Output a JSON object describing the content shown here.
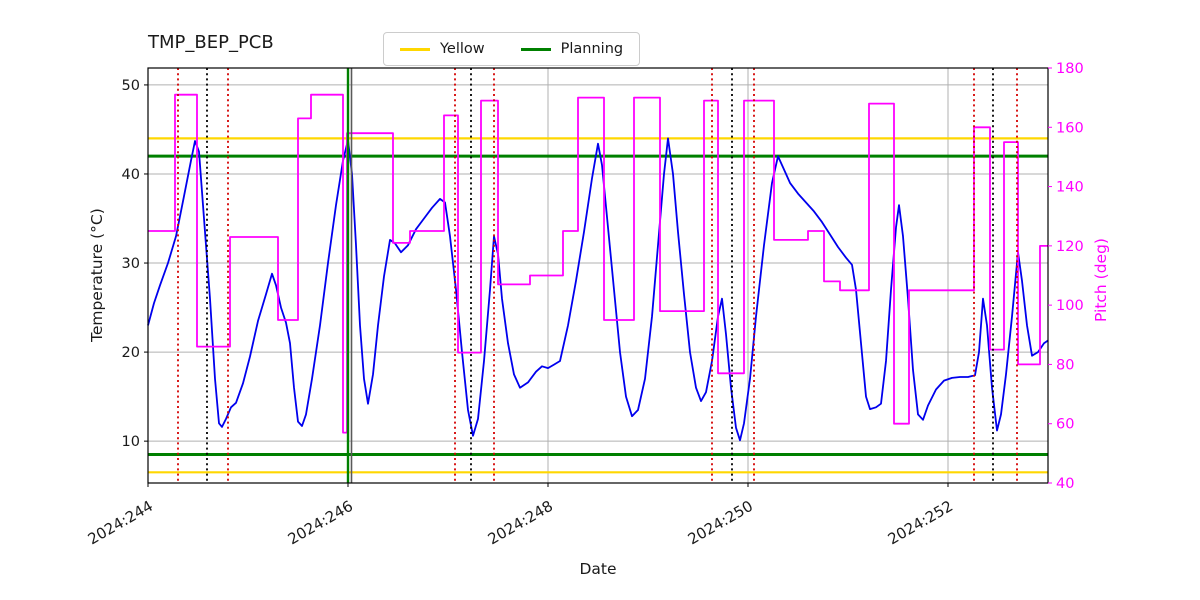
{
  "legend": {
    "items": [
      {
        "label": "Yellow",
        "color": "#ffd700"
      },
      {
        "label": "Planning",
        "color": "#008000"
      }
    ]
  },
  "chart_data": {
    "type": "line",
    "title": "TMP_BEP_PCB",
    "xlabel": "Date",
    "ylabel_left": "Temperature (°C)",
    "ylabel_right": "Pitch (deg)",
    "grid": true,
    "legend_position": "top-center",
    "x_range": [
      244,
      253
    ],
    "x_ticks": [
      {
        "value": 244,
        "label": "2024:244"
      },
      {
        "value": 246,
        "label": "2024:246"
      },
      {
        "value": 248,
        "label": "2024:248"
      },
      {
        "value": 250,
        "label": "2024:250"
      },
      {
        "value": 252,
        "label": "2024:252"
      }
    ],
    "temp_axis": {
      "ticks": [
        10,
        20,
        30,
        40,
        50
      ],
      "range": [
        5.3,
        51.9
      ]
    },
    "pitch_axis": {
      "ticks": [
        40,
        60,
        80,
        100,
        120,
        140,
        160,
        180
      ],
      "range": [
        40,
        180
      ],
      "color": "#ff00ff"
    },
    "colors": {
      "grid": "#b0b0b0",
      "spine": "#000000",
      "background": "#ffffff"
    },
    "series": [
      {
        "name": "Temperature",
        "axis": "left",
        "style": "line",
        "color": "#0000ee",
        "x": [
          244.0,
          244.06,
          244.12,
          244.2,
          244.28,
          244.36,
          244.43,
          244.47,
          244.51,
          244.56,
          244.62,
          244.67,
          244.71,
          244.74,
          244.78,
          244.83,
          244.88,
          244.95,
          245.02,
          245.1,
          245.18,
          245.24,
          245.28,
          245.33,
          245.38,
          245.42,
          245.46,
          245.5,
          245.54,
          245.58,
          245.64,
          245.72,
          245.8,
          245.88,
          245.95,
          246.0,
          246.04,
          246.08,
          246.12,
          246.16,
          246.2,
          246.25,
          246.3,
          246.36,
          246.42,
          246.47,
          246.53,
          246.6,
          246.68,
          246.76,
          246.84,
          246.92,
          246.97,
          247.02,
          247.08,
          247.14,
          247.2,
          247.25,
          247.3,
          247.36,
          247.42,
          247.46,
          247.5,
          247.54,
          247.6,
          247.66,
          247.72,
          247.8,
          247.88,
          247.94,
          248.0,
          248.06,
          248.12,
          248.2,
          248.28,
          248.36,
          248.44,
          248.5,
          248.54,
          248.6,
          248.66,
          248.72,
          248.78,
          248.84,
          248.9,
          248.97,
          249.04,
          249.1,
          249.16,
          249.2,
          249.25,
          249.3,
          249.36,
          249.42,
          249.48,
          249.53,
          249.58,
          249.64,
          249.7,
          249.74,
          249.78,
          249.83,
          249.88,
          249.92,
          249.96,
          250.02,
          250.08,
          250.16,
          250.24,
          250.3,
          250.36,
          250.42,
          250.5,
          250.58,
          250.66,
          250.74,
          250.82,
          250.9,
          250.98,
          251.04,
          251.08,
          251.13,
          251.18,
          251.22,
          251.28,
          251.33,
          251.38,
          251.43,
          251.48,
          251.51,
          251.55,
          251.6,
          251.65,
          251.7,
          251.75,
          251.8,
          251.88,
          251.96,
          252.04,
          252.12,
          252.2,
          252.27,
          252.31,
          252.35,
          252.39,
          252.44,
          252.49,
          252.53,
          252.58,
          252.64,
          252.7,
          252.74,
          252.79,
          252.84,
          252.9,
          252.96,
          253.0
        ],
        "y": [
          23,
          25.5,
          27.5,
          30,
          33,
          37.5,
          41.5,
          43.7,
          42.5,
          35,
          26,
          17,
          12,
          11.6,
          12.5,
          13.8,
          14.3,
          16.5,
          19.5,
          23.5,
          26.5,
          28.8,
          27.5,
          25,
          23.3,
          21,
          16,
          12.2,
          11.7,
          13,
          17,
          23,
          30,
          36.5,
          41.5,
          43.8,
          40,
          32,
          23,
          17,
          14.2,
          17.5,
          23,
          28.5,
          32.6,
          32.2,
          31.2,
          32,
          33.8,
          35,
          36.2,
          37.2,
          36.8,
          33,
          27,
          20,
          13.5,
          10.6,
          12.5,
          19,
          27,
          33,
          31,
          26,
          21,
          17.5,
          16,
          16.6,
          17.8,
          18.4,
          18.2,
          18.6,
          19,
          23,
          28,
          33.5,
          39.5,
          43.4,
          41,
          34,
          27,
          20,
          15,
          12.8,
          13.5,
          17,
          24,
          32,
          40,
          44,
          40,
          33.5,
          26.5,
          20,
          16,
          14.5,
          15.5,
          19,
          24,
          26,
          22,
          16,
          11.5,
          10.1,
          12,
          17,
          24,
          32,
          39,
          42,
          40.5,
          39,
          37.8,
          36.8,
          35.8,
          34.6,
          33.2,
          31.8,
          30.6,
          29.8,
          27,
          21,
          15,
          13.6,
          13.8,
          14.2,
          19,
          27,
          34,
          36.5,
          33,
          26,
          18,
          13,
          12.4,
          14,
          15.8,
          16.8,
          17.1,
          17.2,
          17.2,
          17.4,
          20,
          26,
          23,
          16,
          11.2,
          13,
          17.5,
          24,
          31.2,
          28,
          23,
          19.6,
          20,
          21,
          21.3
        ]
      },
      {
        "name": "Pitch",
        "axis": "right",
        "style": "step",
        "color": "#ff00ff",
        "steps": [
          [
            244.0,
            244.27,
            125
          ],
          [
            244.27,
            244.49,
            171
          ],
          [
            244.49,
            244.82,
            86
          ],
          [
            244.82,
            245.3,
            123
          ],
          [
            245.3,
            245.5,
            95
          ],
          [
            245.5,
            245.63,
            163
          ],
          [
            245.63,
            245.95,
            171
          ],
          [
            245.95,
            245.99,
            57
          ],
          [
            245.99,
            246.45,
            158
          ],
          [
            246.45,
            246.62,
            121
          ],
          [
            246.62,
            246.96,
            125
          ],
          [
            246.96,
            247.1,
            164
          ],
          [
            247.1,
            247.33,
            84
          ],
          [
            247.33,
            247.5,
            169
          ],
          [
            247.5,
            247.82,
            107
          ],
          [
            247.82,
            248.15,
            110
          ],
          [
            248.15,
            248.3,
            125
          ],
          [
            248.3,
            248.56,
            170
          ],
          [
            248.56,
            248.86,
            95
          ],
          [
            248.86,
            249.12,
            170
          ],
          [
            249.12,
            249.56,
            98
          ],
          [
            249.56,
            249.7,
            169
          ],
          [
            249.7,
            249.96,
            77
          ],
          [
            249.96,
            250.26,
            169
          ],
          [
            250.26,
            250.6,
            122
          ],
          [
            250.6,
            250.76,
            125
          ],
          [
            250.76,
            250.92,
            108
          ],
          [
            250.92,
            251.21,
            105
          ],
          [
            251.21,
            251.46,
            168
          ],
          [
            251.46,
            251.61,
            60
          ],
          [
            251.61,
            252.26,
            105
          ],
          [
            252.26,
            252.42,
            160
          ],
          [
            252.42,
            252.56,
            85
          ],
          [
            252.56,
            252.7,
            155
          ],
          [
            252.7,
            252.92,
            80
          ],
          [
            252.92,
            253.0,
            120
          ]
        ]
      }
    ],
    "limit_lines": [
      {
        "name": "yellow-upper",
        "label": "Yellow",
        "value": 44,
        "color": "#ffd700",
        "width": 2.2
      },
      {
        "name": "yellow-lower",
        "label": "Yellow",
        "value": 6.5,
        "color": "#ffd700",
        "width": 2.2
      },
      {
        "name": "planning-upper",
        "label": "Planning",
        "value": 42,
        "color": "#008000",
        "width": 3
      },
      {
        "name": "planning-lower",
        "label": "Planning",
        "value": 8.5,
        "color": "#008000",
        "width": 3
      }
    ],
    "event_lines": [
      {
        "name": "red-dotted-marker",
        "color": "#d40000",
        "width": 1.8,
        "dash": "2 3.2",
        "x": [
          244.3,
          244.8,
          247.07,
          247.46,
          249.64,
          250.06,
          252.26,
          252.69
        ]
      },
      {
        "name": "black-dotted-marker",
        "color": "#000000",
        "width": 1.8,
        "dash": "2 3.2",
        "x": [
          244.59,
          247.23,
          249.84,
          252.45
        ]
      },
      {
        "name": "gray-solid-marker",
        "color": "#5a5a5a",
        "width": 1.6,
        "dash": "",
        "x": [
          246.035
        ]
      },
      {
        "name": "green-solid-marker",
        "color": "#008000",
        "width": 2.4,
        "dash": "",
        "x": [
          246.0
        ]
      }
    ]
  }
}
